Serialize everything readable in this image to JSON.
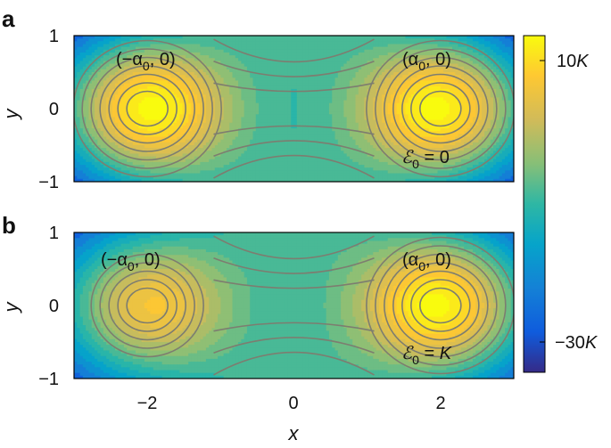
{
  "chart_data": [
    {
      "panel_label": "a",
      "type": "heatmap",
      "subtype": "contour",
      "x_range": [
        -3,
        3
      ],
      "y_range": [
        -1,
        1
      ],
      "x_ticks": [
        "−2",
        "0",
        "2"
      ],
      "y_ticks": [
        "1",
        "0",
        "−1"
      ],
      "xlabel": "",
      "ylabel": "y",
      "grid": false,
      "features": [
        {
          "kind": "maximum",
          "x": -2,
          "y": 0,
          "label": "(−α",
          "sub": "0",
          "tail": ", 0)"
        },
        {
          "kind": "maximum",
          "x": 2,
          "y": 0,
          "label": "(α",
          "sub": "0",
          "tail": ", 0)"
        }
      ],
      "condition": {
        "symbol": "ℰ",
        "sub": "0",
        "text": " = 0"
      },
      "asymmetry": 0
    },
    {
      "panel_label": "b",
      "type": "heatmap",
      "subtype": "contour",
      "x_range": [
        -3,
        3
      ],
      "y_range": [
        -1,
        1
      ],
      "x_ticks": [
        "−2",
        "0",
        "2"
      ],
      "y_ticks": [
        "1",
        "0",
        "−1"
      ],
      "xlabel": "x",
      "ylabel": "y",
      "grid": false,
      "features": [
        {
          "kind": "maximum",
          "x": -2,
          "y": 0,
          "label": "(−α",
          "sub": "0",
          "tail": ", 0)"
        },
        {
          "kind": "maximum",
          "x": 2,
          "y": 0,
          "label": "(α",
          "sub": "0",
          "tail": ", 0)"
        }
      ],
      "condition": {
        "symbol": "ℰ",
        "sub": "0",
        "text": " = ",
        "value": "K"
      },
      "asymmetry": 1
    }
  ],
  "colorbar": {
    "colormap": "parula",
    "tick_top_num": "10",
    "tick_top_unit": "K",
    "tick_bottom_num": "−30",
    "tick_bottom_unit": "K"
  },
  "colors": {
    "contour_line": "#7d7d70",
    "frame": "#000000"
  }
}
